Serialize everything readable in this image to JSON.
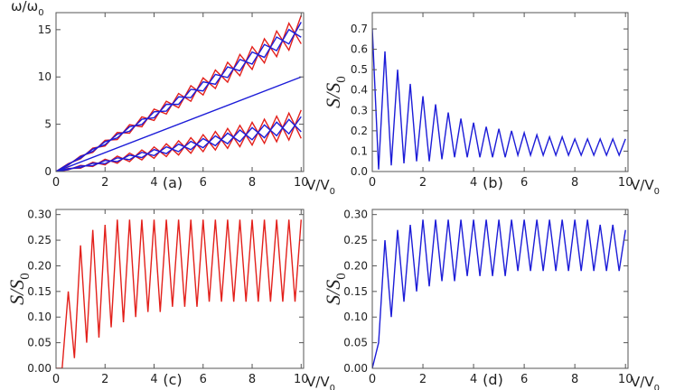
{
  "chart_data": [
    {
      "type": "line",
      "panel_label": "(a)",
      "y_label": [
        "ω/ω",
        "0"
      ],
      "x_label": [
        "V/V",
        "0"
      ],
      "xlim": [
        0,
        10.1
      ],
      "ylim": [
        0,
        16.8
      ],
      "xticks": [
        0,
        2,
        4,
        6,
        8,
        10
      ],
      "yticks": [
        0,
        5,
        10,
        15
      ],
      "x": [
        0,
        0.5,
        1,
        1.5,
        2,
        2.5,
        3,
        3.5,
        4,
        4.5,
        5,
        5.5,
        6,
        6.5,
        7,
        7.5,
        8,
        8.5,
        9,
        9.5,
        10
      ],
      "series": [
        {
          "color": "#e3201b",
          "values": [
            0,
            0.68,
            1.65,
            2.03,
            3.3,
            3.38,
            4.95,
            4.73,
            6.6,
            6.08,
            8.25,
            7.43,
            9.9,
            8.78,
            11.55,
            10.13,
            13.2,
            11.48,
            14.85,
            12.83,
            16.5
          ]
        },
        {
          "color": "#e3201b",
          "values": [
            0,
            0.83,
            1.35,
            2.48,
            2.7,
            4.13,
            4.05,
            5.78,
            5.4,
            7.43,
            6.75,
            9.08,
            8.1,
            10.73,
            9.45,
            12.38,
            10.8,
            14.03,
            12.15,
            15.68,
            13.5
          ]
        },
        {
          "color": "#e3201b",
          "values": [
            0,
            0.18,
            0.65,
            0.53,
            1.3,
            0.88,
            1.95,
            1.23,
            2.6,
            1.58,
            3.25,
            1.93,
            3.9,
            2.28,
            4.55,
            2.63,
            5.2,
            2.98,
            5.85,
            3.33,
            6.5
          ]
        },
        {
          "color": "#e3201b",
          "values": [
            0,
            0.33,
            0.35,
            0.98,
            0.7,
            1.63,
            1.05,
            2.28,
            1.4,
            2.93,
            1.75,
            3.58,
            2.1,
            4.23,
            2.45,
            4.88,
            2.8,
            5.53,
            3.15,
            6.18,
            3.5
          ]
        },
        {
          "color": "#1c1cd8",
          "values": [
            0,
            0.71,
            1.58,
            2.13,
            3.16,
            3.55,
            4.74,
            4.97,
            6.32,
            6.39,
            7.9,
            7.81,
            9.48,
            9.23,
            11.06,
            10.65,
            12.64,
            12.07,
            14.22,
            13.49,
            15.8
          ]
        },
        {
          "color": "#1c1cd8",
          "values": [
            0,
            0.79,
            1.42,
            2.37,
            2.84,
            3.95,
            4.26,
            5.53,
            5.68,
            7.11,
            7.1,
            8.69,
            8.52,
            10.27,
            9.94,
            11.85,
            11.36,
            13.43,
            12.78,
            15.01,
            14.2
          ]
        },
        {
          "color": "#1c1cd8",
          "values": [
            0,
            0.21,
            0.58,
            0.63,
            1.16,
            1.05,
            1.74,
            1.47,
            2.32,
            1.89,
            2.9,
            2.31,
            3.48,
            2.73,
            4.06,
            3.15,
            4.64,
            3.57,
            5.22,
            3.99,
            5.8
          ]
        },
        {
          "color": "#1c1cd8",
          "values": [
            0,
            0.29,
            0.42,
            0.87,
            0.84,
            1.45,
            1.26,
            2.03,
            1.68,
            2.61,
            2.1,
            3.19,
            2.52,
            3.77,
            2.94,
            4.39,
            3.36,
            4.93,
            3.78,
            5.51,
            4.2
          ]
        },
        {
          "color": "#1c1cd8",
          "x": [
            0,
            10
          ],
          "values": [
            0,
            10
          ]
        }
      ]
    },
    {
      "type": "line",
      "panel_label": "(b)",
      "y_label": [
        "S/S",
        "0"
      ],
      "x_label": [
        "V/V",
        "0"
      ],
      "xlim": [
        0,
        10.1
      ],
      "ylim": [
        0,
        0.78
      ],
      "xticks": [
        0,
        2,
        4,
        6,
        8,
        10
      ],
      "yticks": [
        {
          "value": 0,
          "label": "0.0"
        },
        0.1,
        0.2,
        0.3,
        0.4,
        0.5,
        0.6,
        0.7
      ],
      "x": [
        0,
        0.25,
        0.5,
        0.75,
        1,
        1.25,
        1.5,
        1.75,
        2,
        2.25,
        2.5,
        2.75,
        3,
        3.25,
        3.5,
        3.75,
        4,
        4.25,
        4.5,
        4.75,
        5,
        5.25,
        5.5,
        5.75,
        6,
        6.25,
        6.5,
        6.75,
        7,
        7.25,
        7.5,
        7.75,
        8,
        8.25,
        8.5,
        8.75,
        9,
        9.25,
        9.5,
        9.75,
        10
      ],
      "series": [
        {
          "color": "#1c1cd8",
          "values": [
            0.7,
            0.01,
            0.59,
            0.03,
            0.5,
            0.04,
            0.43,
            0.05,
            0.37,
            0.05,
            0.33,
            0.06,
            0.29,
            0.07,
            0.26,
            0.07,
            0.24,
            0.07,
            0.22,
            0.07,
            0.21,
            0.07,
            0.2,
            0.08,
            0.19,
            0.08,
            0.18,
            0.08,
            0.17,
            0.08,
            0.17,
            0.08,
            0.16,
            0.08,
            0.16,
            0.08,
            0.16,
            0.08,
            0.16,
            0.08,
            0.16
          ]
        }
      ]
    },
    {
      "type": "line",
      "panel_label": "(c)",
      "y_label": [
        "S/S",
        "0"
      ],
      "x_label": [
        "V/V",
        "0"
      ],
      "xlim": [
        0,
        10.1
      ],
      "ylim": [
        0,
        0.31
      ],
      "xticks": [
        0,
        2,
        4,
        6,
        8,
        10
      ],
      "yticks": [
        {
          "value": 0,
          "label": "0.00"
        },
        0.05,
        {
          "value": 0.1,
          "label": "0.10"
        },
        0.15,
        {
          "value": 0.2,
          "label": "0.20"
        },
        0.25,
        {
          "value": 0.3,
          "label": "0.30"
        }
      ],
      "x": [
        0,
        0.25,
        0.5,
        0.75,
        1,
        1.25,
        1.5,
        1.75,
        2,
        2.25,
        2.5,
        2.75,
        3,
        3.25,
        3.5,
        3.75,
        4,
        4.25,
        4.5,
        4.75,
        5,
        5.25,
        5.5,
        5.75,
        6,
        6.25,
        6.5,
        6.75,
        7,
        7.25,
        7.5,
        7.75,
        8,
        8.25,
        8.5,
        8.75,
        9,
        9.25,
        9.5,
        9.75,
        10
      ],
      "series": [
        {
          "color": "#e3201b",
          "values": [
            0.0,
            0.0,
            0.15,
            0.02,
            0.24,
            0.05,
            0.27,
            0.06,
            0.28,
            0.08,
            0.29,
            0.09,
            0.29,
            0.1,
            0.29,
            0.11,
            0.29,
            0.11,
            0.29,
            0.12,
            0.29,
            0.12,
            0.29,
            0.12,
            0.29,
            0.13,
            0.29,
            0.13,
            0.29,
            0.13,
            0.29,
            0.13,
            0.29,
            0.13,
            0.29,
            0.13,
            0.29,
            0.13,
            0.29,
            0.13,
            0.29
          ]
        }
      ]
    },
    {
      "type": "line",
      "panel_label": "(d)",
      "y_label": [
        "S/S",
        "0"
      ],
      "x_label": [
        "V/V",
        "0"
      ],
      "xlim": [
        0,
        10.1
      ],
      "ylim": [
        0,
        0.31
      ],
      "xticks": [
        0,
        2,
        4,
        6,
        8,
        10
      ],
      "yticks": [
        {
          "value": 0,
          "label": "0.00"
        },
        0.05,
        {
          "value": 0.1,
          "label": "0.10"
        },
        0.15,
        {
          "value": 0.2,
          "label": "0.20"
        },
        0.25,
        {
          "value": 0.3,
          "label": "0.30"
        }
      ],
      "x": [
        0,
        0.25,
        0.5,
        0.75,
        1,
        1.25,
        1.5,
        1.75,
        2,
        2.25,
        2.5,
        2.75,
        3,
        3.25,
        3.5,
        3.75,
        4,
        4.25,
        4.5,
        4.75,
        5,
        5.25,
        5.5,
        5.75,
        6,
        6.25,
        6.5,
        6.75,
        7,
        7.25,
        7.5,
        7.75,
        8,
        8.25,
        8.5,
        8.75,
        9,
        9.25,
        9.5,
        9.75,
        10
      ],
      "series": [
        {
          "color": "#1c1cd8",
          "values": [
            0.0,
            0.05,
            0.25,
            0.1,
            0.27,
            0.13,
            0.28,
            0.15,
            0.29,
            0.16,
            0.29,
            0.17,
            0.29,
            0.17,
            0.29,
            0.18,
            0.29,
            0.18,
            0.29,
            0.18,
            0.29,
            0.18,
            0.29,
            0.19,
            0.29,
            0.19,
            0.29,
            0.19,
            0.29,
            0.19,
            0.29,
            0.19,
            0.29,
            0.19,
            0.29,
            0.19,
            0.28,
            0.19,
            0.28,
            0.19,
            0.27
          ]
        }
      ]
    }
  ]
}
